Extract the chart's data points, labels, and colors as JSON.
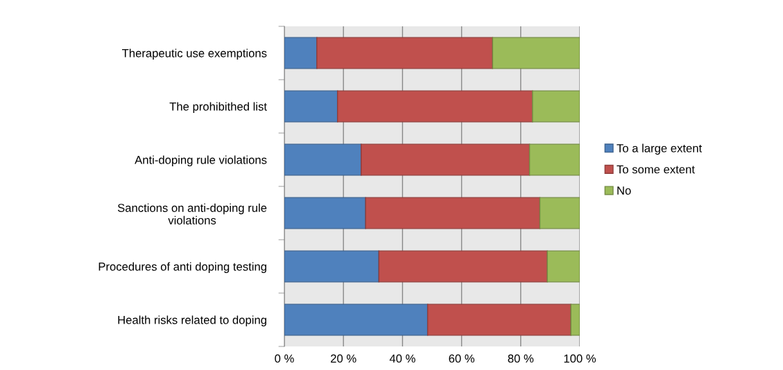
{
  "chart_data": {
    "type": "bar",
    "orientation": "horizontal",
    "stacked": true,
    "categories": [
      "Therapeutic use exemptions",
      "The prohibithed list",
      "Anti-doping rule violations",
      "Sanctions on anti-doping rule violations",
      "Procedures of anti doping testing",
      "Health risks related to doping"
    ],
    "series": [
      {
        "name": "To a large extent",
        "color": "#4f81bd",
        "values": [
          11,
          18,
          26,
          27.5,
          32,
          48.5
        ]
      },
      {
        "name": "To some extent",
        "color": "#c0504d",
        "values": [
          59.5,
          66,
          57,
          59,
          57,
          48.5
        ]
      },
      {
        "name": "No",
        "color": "#9bbb59",
        "values": [
          29.5,
          16,
          17,
          13.5,
          11,
          3
        ]
      }
    ],
    "xlim": [
      0,
      100
    ],
    "xticks": [
      {
        "value": 0,
        "label": "0 %"
      },
      {
        "value": 20,
        "label": "20 %"
      },
      {
        "value": 40,
        "label": "40 %"
      },
      {
        "value": 60,
        "label": "60 %"
      },
      {
        "value": 80,
        "label": "80 %"
      },
      {
        "value": 100,
        "label": "100 %"
      }
    ],
    "grid": "x",
    "legend": "right"
  }
}
